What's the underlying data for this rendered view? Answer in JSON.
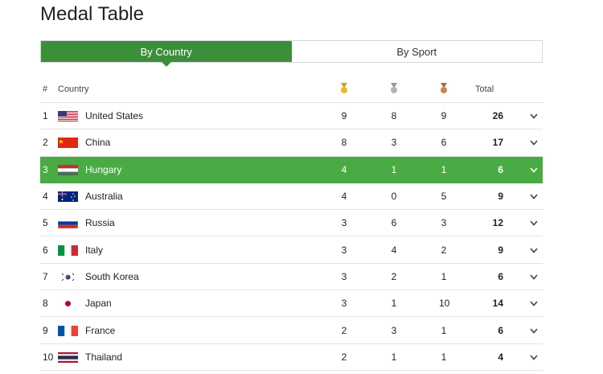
{
  "page": {
    "title": "Medal Table"
  },
  "tabs": [
    {
      "label": "By Country",
      "active": true
    },
    {
      "label": "By Sport",
      "active": false
    }
  ],
  "columns": {
    "rank": "#",
    "country": "Country",
    "total": "Total"
  },
  "colors": {
    "accent": "#3b8f3b",
    "highlight": "#49ab43",
    "gold": "#e8b923",
    "silver": "#b5b5b5",
    "bronze": "#c48a4a"
  },
  "rows": [
    {
      "rank": "1",
      "country": "United States",
      "flag": "us",
      "gold": "9",
      "silver": "8",
      "bronze": "9",
      "total": "26"
    },
    {
      "rank": "2",
      "country": "China",
      "flag": "cn",
      "gold": "8",
      "silver": "3",
      "bronze": "6",
      "total": "17"
    },
    {
      "rank": "3",
      "country": "Hungary",
      "flag": "hu",
      "gold": "4",
      "silver": "1",
      "bronze": "1",
      "total": "6",
      "highlighted": true
    },
    {
      "rank": "4",
      "country": "Australia",
      "flag": "au",
      "gold": "4",
      "silver": "0",
      "bronze": "5",
      "total": "9"
    },
    {
      "rank": "5",
      "country": "Russia",
      "flag": "ru",
      "gold": "3",
      "silver": "6",
      "bronze": "3",
      "total": "12"
    },
    {
      "rank": "6",
      "country": "Italy",
      "flag": "it",
      "gold": "3",
      "silver": "4",
      "bronze": "2",
      "total": "9"
    },
    {
      "rank": "7",
      "country": "South Korea",
      "flag": "kr",
      "gold": "3",
      "silver": "2",
      "bronze": "1",
      "total": "6"
    },
    {
      "rank": "8",
      "country": "Japan",
      "flag": "jp",
      "gold": "3",
      "silver": "1",
      "bronze": "10",
      "total": "14"
    },
    {
      "rank": "9",
      "country": "France",
      "flag": "fr",
      "gold": "2",
      "silver": "3",
      "bronze": "1",
      "total": "6"
    },
    {
      "rank": "10",
      "country": "Thailand",
      "flag": "th",
      "gold": "2",
      "silver": "1",
      "bronze": "1",
      "total": "4"
    }
  ]
}
